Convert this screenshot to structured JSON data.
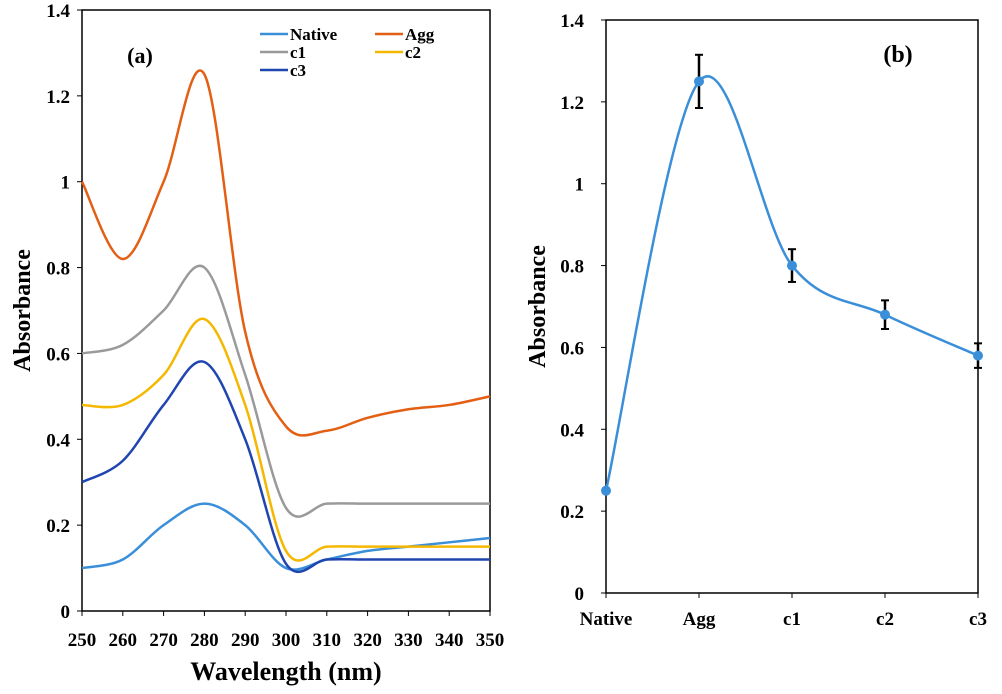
{
  "chart_data": [
    {
      "type": "line",
      "panel_label": "(a)",
      "xlabel": "Wavelength (nm)",
      "ylabel": "Absorbance",
      "xlim": [
        250,
        350
      ],
      "ylim": [
        0,
        1.4
      ],
      "xticks": [
        250,
        260,
        270,
        280,
        290,
        300,
        310,
        320,
        330,
        340,
        350
      ],
      "yticks": [
        0,
        0.2,
        0.4,
        0.6,
        0.8,
        1,
        1.2,
        1.4
      ],
      "ytick_labels": [
        "0",
        "0.2",
        "0.4",
        "0.6",
        "0.8",
        "1",
        "1.2",
        "1.4"
      ],
      "grid": false,
      "legend_position": "top-right",
      "x": [
        250,
        260,
        270,
        280,
        290,
        300,
        310,
        320,
        330,
        340,
        350
      ],
      "series": [
        {
          "name": "Native",
          "color": "#3b8fd9",
          "values": [
            0.1,
            0.12,
            0.2,
            0.25,
            0.2,
            0.1,
            0.12,
            0.14,
            0.15,
            0.16,
            0.17
          ]
        },
        {
          "name": "Agg",
          "color": "#e35f14",
          "values": [
            1.0,
            0.82,
            1.0,
            1.25,
            0.65,
            0.43,
            0.42,
            0.45,
            0.47,
            0.48,
            0.5
          ]
        },
        {
          "name": "c1",
          "color": "#9a9a9a",
          "values": [
            0.6,
            0.62,
            0.7,
            0.8,
            0.55,
            0.24,
            0.25,
            0.25,
            0.25,
            0.25,
            0.25
          ]
        },
        {
          "name": "c2",
          "color": "#f5b800",
          "values": [
            0.48,
            0.48,
            0.55,
            0.68,
            0.48,
            0.14,
            0.15,
            0.15,
            0.15,
            0.15,
            0.15
          ]
        },
        {
          "name": "c3",
          "color": "#1f45b0",
          "values": [
            0.3,
            0.35,
            0.48,
            0.58,
            0.4,
            0.11,
            0.12,
            0.12,
            0.12,
            0.12,
            0.12
          ]
        }
      ]
    },
    {
      "type": "line",
      "panel_label": "(b)",
      "xlabel": "",
      "ylabel": "Absorbance",
      "ylim": [
        0,
        1.4
      ],
      "yticks": [
        0,
        0.2,
        0.4,
        0.6,
        0.8,
        1,
        1.2,
        1.4
      ],
      "ytick_labels": [
        "0",
        "0.2",
        "0.4",
        "0.6",
        "0.8",
        "1",
        "1.2",
        "1.4"
      ],
      "grid": false,
      "categories": [
        "Native",
        "Agg",
        "c1",
        "c2",
        "c3"
      ],
      "color": "#3b8fd9",
      "values": [
        0.25,
        1.25,
        0.8,
        0.68,
        0.58
      ],
      "errors": [
        0,
        0.065,
        0.04,
        0.035,
        0.03
      ]
    }
  ]
}
